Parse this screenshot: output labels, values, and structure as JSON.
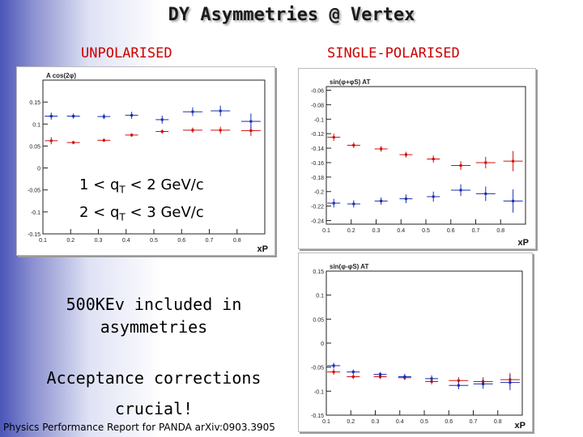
{
  "slide": {
    "title": "DY Asymmetries @ Vertex",
    "unpolarised_heading": "UNPOLARISED",
    "single_polarised_heading": "SINGLE-POLARISED",
    "qt_range_1": "1 < qT < 2 GeV/c",
    "qt_range_2": "2 < qT < 3 GeV/c",
    "bullet_1": "500KEv included in asymmetries",
    "bullet_2": "Acceptance corrections crucial!",
    "footer": "Physics Performance Report for PANDA arXiv:0903.3905"
  },
  "colors": {
    "series_red": "#d01010",
    "series_blue": "#1a2fb0"
  },
  "chart_data": [
    {
      "type": "scatter",
      "ylabel": "A cos(2φ)",
      "xlabel": "xP",
      "xlim": [
        0.1,
        0.9
      ],
      "ylim": [
        -0.15,
        0.2
      ],
      "xticks": [
        "0.1",
        "0.2",
        "0.3",
        "0.4",
        "0.5",
        "0.6",
        "0.7",
        "0.8"
      ],
      "yticks": [
        "-0.15",
        "-0.1",
        "-0.05",
        "0",
        "0.05",
        "0.1",
        "0.15"
      ],
      "series": [
        {
          "color": "#d01010",
          "x": [
            0.13,
            0.21,
            0.32,
            0.42,
            0.53,
            0.64,
            0.74,
            0.85
          ],
          "y": [
            0.062,
            0.058,
            0.063,
            0.075,
            0.083,
            0.086,
            0.086,
            0.085
          ],
          "err": [
            0.008,
            0.004,
            0.004,
            0.004,
            0.005,
            0.006,
            0.008,
            0.012
          ]
        },
        {
          "color": "#1a2fb0",
          "x": [
            0.13,
            0.21,
            0.32,
            0.42,
            0.53,
            0.64,
            0.74,
            0.85
          ],
          "y": [
            0.118,
            0.118,
            0.117,
            0.12,
            0.11,
            0.128,
            0.13,
            0.106
          ],
          "err": [
            0.008,
            0.006,
            0.006,
            0.008,
            0.009,
            0.01,
            0.012,
            0.018
          ]
        }
      ]
    },
    {
      "type": "scatter",
      "ylabel": "sin(φ+φS) AT",
      "xlabel": "xP",
      "xlim": [
        0.1,
        0.9
      ],
      "ylim": [
        -0.245,
        -0.055
      ],
      "xticks": [
        "0.1",
        "0.2",
        "0.3",
        "0.4",
        "0.5",
        "0.6",
        "0.7",
        "0.8"
      ],
      "yticks": [
        "-0.06",
        "-0.08",
        "-0.1",
        "-0.12",
        "-0.14",
        "-0.16",
        "-0.18",
        "-0.2",
        "-0.22",
        "-0.24"
      ],
      "series": [
        {
          "color": "#d01010",
          "x": [
            0.13,
            0.21,
            0.32,
            0.42,
            0.53,
            0.64,
            0.74,
            0.85
          ],
          "y": [
            -0.125,
            -0.136,
            -0.141,
            -0.149,
            -0.155,
            -0.164,
            -0.16,
            -0.158
          ],
          "err": [
            0.005,
            0.004,
            0.004,
            0.004,
            0.005,
            0.006,
            0.008,
            0.014
          ]
        },
        {
          "color": "#1a2fb0",
          "x": [
            0.13,
            0.21,
            0.32,
            0.42,
            0.53,
            0.64,
            0.74,
            0.85
          ],
          "y": [
            -0.216,
            -0.217,
            -0.213,
            -0.21,
            -0.207,
            -0.198,
            -0.203,
            -0.213
          ],
          "err": [
            0.006,
            0.005,
            0.005,
            0.006,
            0.007,
            0.008,
            0.01,
            0.016
          ]
        }
      ]
    },
    {
      "type": "scatter",
      "ylabel": "sin(φ-φS) AT",
      "xlabel": "xP",
      "xlim": [
        0.1,
        0.9
      ],
      "ylim": [
        -0.15,
        0.15
      ],
      "xticks": [
        "0.1",
        "0.2",
        "0.3",
        "0.4",
        "0.5",
        "0.6",
        "0.7",
        "0.8"
      ],
      "yticks": [
        "-0.15",
        "-0.1",
        "-0.05",
        "0",
        "0.05",
        "0.1",
        "0.15"
      ],
      "series": [
        {
          "color": "#d01010",
          "x": [
            0.13,
            0.21,
            0.32,
            0.42,
            0.53,
            0.64,
            0.74,
            0.85
          ],
          "y": [
            -0.06,
            -0.07,
            -0.07,
            -0.072,
            -0.08,
            -0.078,
            -0.08,
            -0.076
          ],
          "err": [
            0.006,
            0.005,
            0.005,
            0.005,
            0.006,
            0.007,
            0.009,
            0.014
          ]
        },
        {
          "color": "#1a2fb0",
          "x": [
            0.13,
            0.21,
            0.32,
            0.42,
            0.53,
            0.64,
            0.74,
            0.85
          ],
          "y": [
            -0.047,
            -0.06,
            -0.065,
            -0.07,
            -0.074,
            -0.088,
            -0.085,
            -0.082
          ],
          "err": [
            0.006,
            0.005,
            0.005,
            0.006,
            0.007,
            0.008,
            0.01,
            0.016
          ]
        }
      ]
    }
  ]
}
